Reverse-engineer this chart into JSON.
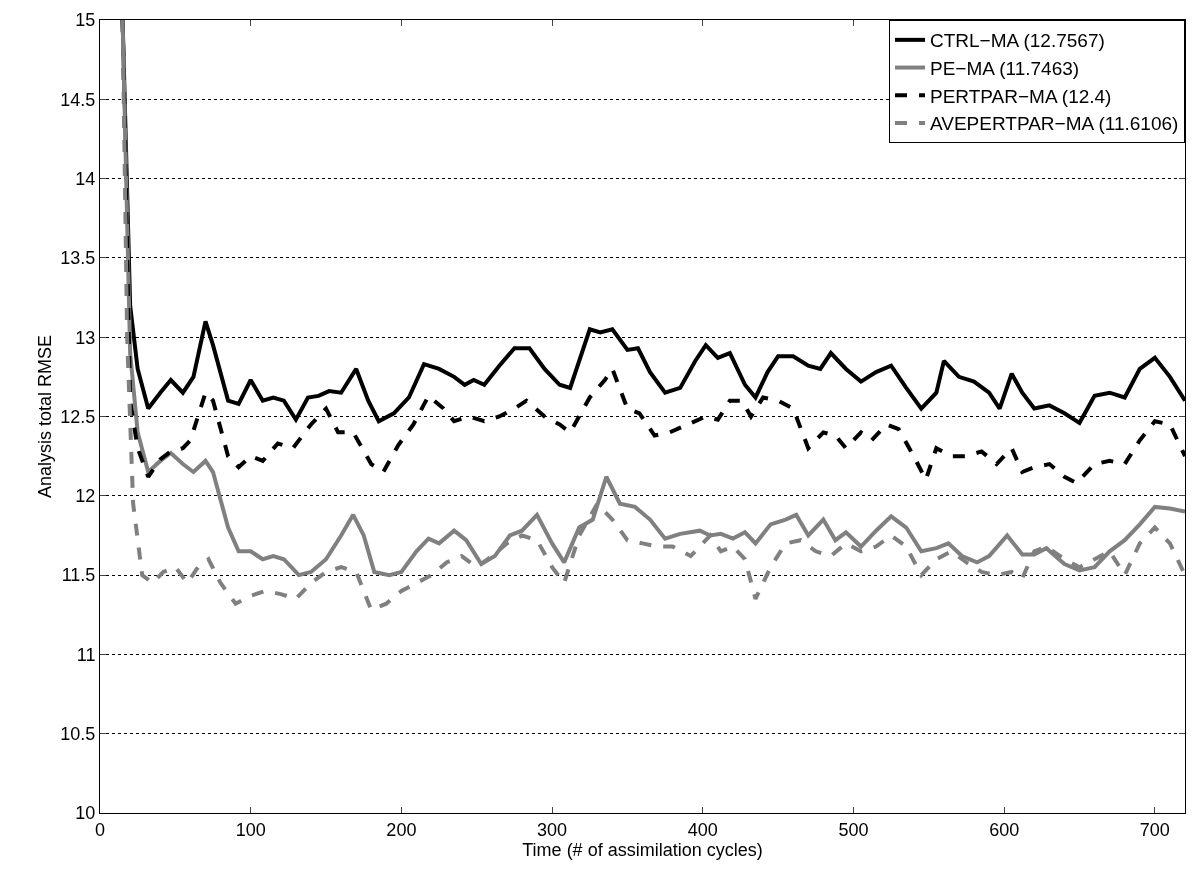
{
  "chart_data": {
    "type": "line",
    "xlabel": "Time (# of assimilation cycles)",
    "ylabel": "Analysis total RMSE",
    "xlim": [
      0,
      720
    ],
    "ylim": [
      10,
      15
    ],
    "xticks": [
      0,
      100,
      200,
      300,
      400,
      500,
      600,
      700
    ],
    "yticks": [
      10,
      10.5,
      11,
      11.5,
      12,
      12.5,
      13,
      13.5,
      14,
      14.5,
      15
    ],
    "grid": "y",
    "legend": "top right",
    "marker": "none",
    "series": [
      {
        "name": "CTRL−MA (12.7567)",
        "color": "#000000",
        "line_style": "solid",
        "x": [
          15,
          20,
          25,
          32,
          40,
          47,
          55,
          62,
          70,
          75,
          85,
          92,
          100,
          108,
          115,
          122,
          130,
          138,
          145,
          152,
          160,
          170,
          178,
          185,
          195,
          205,
          215,
          225,
          235,
          242,
          248,
          255,
          265,
          275,
          285,
          295,
          305,
          312,
          325,
          332,
          340,
          350,
          357,
          365,
          375,
          385,
          395,
          402,
          410,
          418,
          428,
          435,
          443,
          450,
          460,
          470,
          478,
          485,
          495,
          505,
          515,
          525,
          535,
          545,
          555,
          560,
          570,
          580,
          590,
          597,
          605,
          612,
          620,
          630,
          640,
          650,
          660,
          670,
          680,
          690,
          700,
          710,
          720
        ],
        "values": [
          15,
          13.2,
          12.8,
          12.55,
          12.65,
          12.73,
          12.65,
          12.75,
          13.1,
          12.95,
          12.6,
          12.58,
          12.73,
          12.6,
          12.62,
          12.6,
          12.48,
          12.62,
          12.63,
          12.66,
          12.65,
          12.8,
          12.6,
          12.47,
          12.52,
          12.62,
          12.83,
          12.8,
          12.75,
          12.7,
          12.73,
          12.7,
          12.82,
          12.93,
          12.93,
          12.8,
          12.7,
          12.68,
          13.05,
          13.03,
          13.05,
          12.92,
          12.93,
          12.78,
          12.65,
          12.68,
          12.85,
          12.95,
          12.87,
          12.9,
          12.7,
          12.62,
          12.78,
          12.88,
          12.88,
          12.82,
          12.8,
          12.9,
          12.8,
          12.72,
          12.78,
          12.82,
          12.68,
          12.55,
          12.65,
          12.85,
          12.75,
          12.72,
          12.65,
          12.55,
          12.77,
          12.65,
          12.55,
          12.57,
          12.52,
          12.46,
          12.63,
          12.65,
          12.62,
          12.8,
          12.87,
          12.75,
          12.6
        ]
      },
      {
        "name": "PE−MA (11.7463)",
        "color": "#808080",
        "line_style": "solid",
        "x": [
          15,
          20,
          25,
          32,
          40,
          47,
          55,
          62,
          70,
          75,
          85,
          92,
          100,
          108,
          115,
          122,
          132,
          140,
          150,
          160,
          168,
          175,
          182,
          192,
          200,
          210,
          218,
          225,
          235,
          243,
          253,
          262,
          272,
          280,
          290,
          300,
          308,
          318,
          327,
          336,
          345,
          355,
          365,
          375,
          385,
          398,
          405,
          412,
          420,
          428,
          435,
          445,
          455,
          462,
          470,
          480,
          488,
          495,
          505,
          515,
          525,
          535,
          545,
          555,
          563,
          572,
          582,
          590,
          602,
          612,
          620,
          628,
          640,
          650,
          660,
          670,
          680,
          690,
          700,
          710,
          720
        ],
        "values": [
          15,
          12.9,
          12.4,
          12.15,
          12.22,
          12.27,
          12.2,
          12.15,
          12.22,
          12.15,
          11.8,
          11.65,
          11.65,
          11.6,
          11.62,
          11.6,
          11.5,
          11.52,
          11.6,
          11.75,
          11.88,
          11.75,
          11.52,
          11.5,
          11.52,
          11.65,
          11.73,
          11.7,
          11.78,
          11.72,
          11.57,
          11.62,
          11.75,
          11.78,
          11.88,
          11.7,
          11.58,
          11.8,
          11.85,
          12.12,
          11.95,
          11.93,
          11.85,
          11.73,
          11.76,
          11.78,
          11.75,
          11.76,
          11.73,
          11.77,
          11.7,
          11.82,
          11.85,
          11.88,
          11.75,
          11.85,
          11.72,
          11.77,
          11.68,
          11.78,
          11.87,
          11.8,
          11.65,
          11.67,
          11.7,
          11.62,
          11.58,
          11.62,
          11.75,
          11.63,
          11.63,
          11.67,
          11.57,
          11.53,
          11.55,
          11.65,
          11.72,
          11.82,
          11.93,
          11.92,
          11.9
        ]
      },
      {
        "name": "PERTPAR−MA (12.4)",
        "color": "#000000",
        "line_style": "dashed",
        "x": [
          15,
          20,
          25,
          32,
          40,
          47,
          55,
          60,
          70,
          75,
          85,
          92,
          100,
          108,
          118,
          128,
          140,
          150,
          158,
          168,
          180,
          188,
          198,
          208,
          218,
          228,
          235,
          245,
          255,
          265,
          275,
          283,
          295,
          305,
          312,
          325,
          335,
          340,
          350,
          358,
          368,
          378,
          390,
          402,
          410,
          418,
          426,
          432,
          440,
          450,
          460,
          470,
          480,
          488,
          495,
          505,
          512,
          522,
          530,
          540,
          548,
          555,
          565,
          575,
          585,
          595,
          605,
          612,
          620,
          630,
          640,
          648,
          660,
          670,
          680,
          690,
          700,
          710,
          720
        ],
        "values": [
          15,
          12.6,
          12.3,
          12.12,
          12.23,
          12.28,
          12.3,
          12.35,
          12.65,
          12.6,
          12.25,
          12.18,
          12.25,
          12.22,
          12.33,
          12.3,
          12.45,
          12.55,
          12.4,
          12.4,
          12.2,
          12.15,
          12.32,
          12.45,
          12.63,
          12.55,
          12.47,
          12.5,
          12.47,
          12.5,
          12.55,
          12.6,
          12.5,
          12.45,
          12.4,
          12.62,
          12.73,
          12.8,
          12.55,
          12.52,
          12.38,
          12.4,
          12.45,
          12.5,
          12.48,
          12.6,
          12.6,
          12.5,
          12.62,
          12.6,
          12.55,
          12.3,
          12.4,
          12.38,
          12.3,
          12.4,
          12.35,
          12.45,
          12.42,
          12.25,
          12.1,
          12.3,
          12.25,
          12.25,
          12.28,
          12.2,
          12.3,
          12.15,
          12.18,
          12.2,
          12.12,
          12.08,
          12.2,
          12.22,
          12.2,
          12.35,
          12.47,
          12.45,
          12.25
        ]
      },
      {
        "name": "AVEPERTPAR−MA (11.6106)",
        "color": "#808080",
        "line_style": "dashed",
        "x": [
          15,
          18,
          22,
          28,
          35,
          42,
          50,
          58,
          65,
          72,
          80,
          90,
          100,
          110,
          120,
          130,
          140,
          150,
          160,
          170,
          180,
          190,
          200,
          210,
          220,
          230,
          240,
          250,
          260,
          270,
          280,
          290,
          300,
          308,
          318,
          330,
          340,
          350,
          360,
          370,
          380,
          392,
          405,
          412,
          420,
          428,
          435,
          445,
          455,
          465,
          475,
          485,
          495,
          505,
          515,
          525,
          535,
          545,
          555,
          565,
          575,
          585,
          595,
          605,
          612,
          620,
          628,
          640,
          650,
          660,
          670,
          680,
          690,
          700,
          710,
          720
        ],
        "values": [
          15,
          13,
          11.95,
          11.5,
          11.45,
          11.52,
          11.55,
          11.45,
          11.55,
          11.6,
          11.45,
          11.32,
          11.37,
          11.4,
          11.38,
          11.35,
          11.45,
          11.52,
          11.55,
          11.52,
          11.28,
          11.32,
          11.4,
          11.45,
          11.5,
          11.58,
          11.62,
          11.55,
          11.62,
          11.7,
          11.75,
          11.72,
          11.55,
          11.45,
          11.75,
          11.95,
          11.85,
          11.72,
          11.7,
          11.68,
          11.68,
          11.62,
          11.75,
          11.65,
          11.68,
          11.6,
          11.35,
          11.55,
          11.7,
          11.72,
          11.65,
          11.62,
          11.7,
          11.65,
          11.68,
          11.75,
          11.68,
          11.5,
          11.6,
          11.65,
          11.58,
          11.52,
          11.5,
          11.52,
          11.48,
          11.65,
          11.68,
          11.6,
          11.55,
          11.6,
          11.65,
          11.5,
          11.7,
          11.8,
          11.7,
          11.5
        ]
      }
    ]
  }
}
